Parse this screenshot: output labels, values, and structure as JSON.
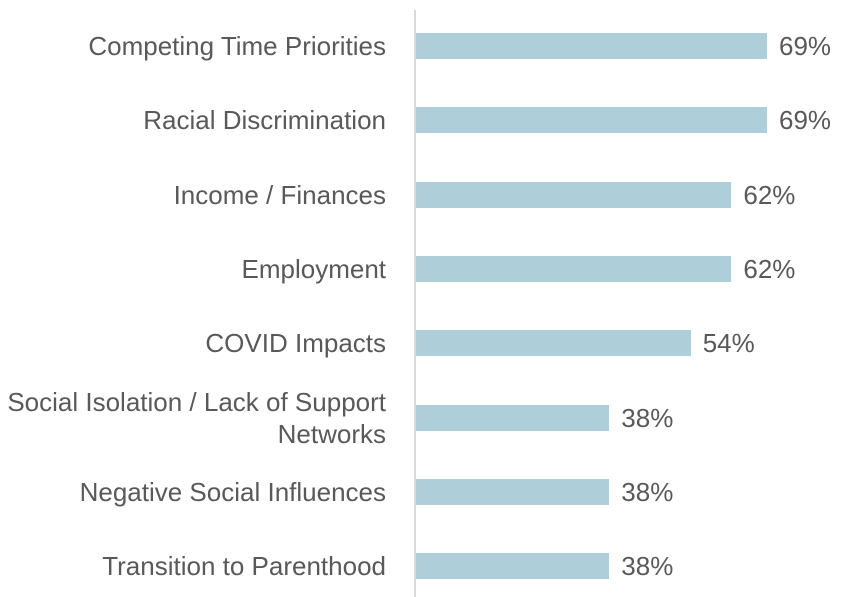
{
  "chart_data": {
    "type": "bar",
    "orientation": "horizontal",
    "categories": [
      "Competing Time Priorities",
      "Racial Discrimination",
      "Income / Finances",
      "Employment",
      "COVID Impacts",
      "Social Isolation / Lack of Support Networks",
      "Negative Social Influences",
      "Transition to Parenthood"
    ],
    "values": [
      69,
      69,
      62,
      62,
      54,
      38,
      38,
      38
    ],
    "value_labels": [
      "69%",
      "69%",
      "62%",
      "62%",
      "54%",
      "38%",
      "38%",
      "38%"
    ],
    "color": "#aecfda"
  }
}
